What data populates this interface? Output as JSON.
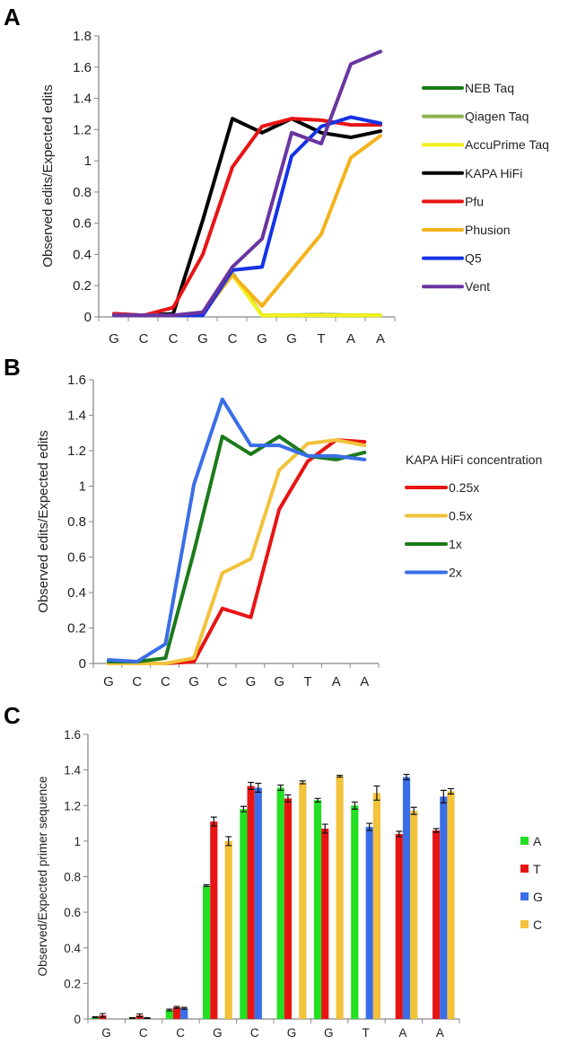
{
  "chart_data": [
    {
      "panel": "A",
      "type": "line",
      "categories": [
        "G",
        "C",
        "C",
        "G",
        "C",
        "G",
        "G",
        "T",
        "A",
        "A"
      ],
      "ylabel": "Observed edits/Expected edits",
      "ylim": [
        0,
        1.8
      ],
      "yticks": [
        "0",
        "0.2",
        "0.4",
        "0.6",
        "0.8",
        "1",
        "1.2",
        "1.4",
        "1.6",
        "1.8"
      ],
      "legend_position": "right",
      "series": [
        {
          "name": "NEB Taq",
          "color": "#1a7a1a",
          "values": [
            0.01,
            0.01,
            0.01,
            0.02,
            0.28,
            0.01,
            0.01,
            0.015,
            0.01,
            0.01
          ]
        },
        {
          "name": "Qiagen Taq",
          "color": "#8fb24f",
          "values": [
            0.01,
            0.01,
            0.01,
            0.02,
            0.28,
            0.01,
            0.01,
            0.015,
            0.01,
            0.01
          ]
        },
        {
          "name": "AccuPrime Taq",
          "color": "#f2f21a",
          "values": [
            0.01,
            0.01,
            0.01,
            0.02,
            0.27,
            0.01,
            0.01,
            0.01,
            0.01,
            0.01
          ]
        },
        {
          "name": "KAPA HiFi",
          "color": "#000000",
          "values": [
            0.02,
            0.01,
            0.02,
            0.62,
            1.27,
            1.18,
            1.27,
            1.18,
            1.15,
            1.19
          ]
        },
        {
          "name": "Pfu",
          "color": "#e81414",
          "values": [
            0.02,
            0.01,
            0.06,
            0.4,
            0.96,
            1.22,
            1.27,
            1.26,
            1.23,
            1.23
          ]
        },
        {
          "name": "Phusion",
          "color": "#f5b21c",
          "values": [
            0.01,
            0.01,
            0.01,
            0.02,
            0.27,
            0.07,
            0.3,
            0.53,
            1.02,
            1.16
          ]
        },
        {
          "name": "Q5",
          "color": "#1432e6",
          "values": [
            0.01,
            0.01,
            0.01,
            0.01,
            0.3,
            0.32,
            1.03,
            1.22,
            1.28,
            1.24
          ]
        },
        {
          "name": "Vent",
          "color": "#6a35a0",
          "values": [
            0.01,
            0.01,
            0.01,
            0.03,
            0.32,
            0.5,
            1.18,
            1.11,
            1.62,
            1.7
          ]
        }
      ]
    },
    {
      "panel": "B",
      "type": "line",
      "categories": [
        "G",
        "C",
        "C",
        "G",
        "C",
        "G",
        "G",
        "T",
        "A",
        "A"
      ],
      "ylabel": "Observed edits/Expected edits",
      "ylim": [
        0,
        1.6
      ],
      "yticks": [
        "0",
        "0.2",
        "0.4",
        "0.6",
        "0.8",
        "1",
        "1.2",
        "1.4",
        "1.6"
      ],
      "legend_title": "KAPA HiFi concentration",
      "legend_position": "right",
      "series": [
        {
          "name": "0.25x",
          "color": "#e81414",
          "values": [
            0.0,
            0.0,
            0.0,
            0.01,
            0.31,
            0.26,
            0.87,
            1.14,
            1.26,
            1.25
          ]
        },
        {
          "name": "0.5x",
          "color": "#f2c23a",
          "values": [
            0.0,
            0.0,
            0.0,
            0.03,
            0.51,
            0.59,
            1.09,
            1.24,
            1.26,
            1.23
          ]
        },
        {
          "name": "1x",
          "color": "#1a7a1a",
          "values": [
            0.01,
            0.01,
            0.03,
            0.63,
            1.28,
            1.18,
            1.28,
            1.17,
            1.15,
            1.19
          ]
        },
        {
          "name": "2x",
          "color": "#3a6ee8",
          "values": [
            0.02,
            0.01,
            0.11,
            1.01,
            1.49,
            1.23,
            1.23,
            1.17,
            1.17,
            1.15
          ]
        }
      ]
    },
    {
      "panel": "C",
      "type": "bar",
      "categories": [
        "G",
        "C",
        "C",
        "G",
        "C",
        "G",
        "G",
        "T",
        "A",
        "A"
      ],
      "ylabel": "Observed/Expected primer sequence",
      "ylim": [
        0,
        1.6
      ],
      "yticks": [
        "0",
        "0.2",
        "0.4",
        "0.6",
        "0.8",
        "1",
        "1.2",
        "1.4",
        "1.6"
      ],
      "legend_position": "right",
      "series": [
        {
          "name": "A",
          "color": "#22e022",
          "values": [
            0.01,
            0.005,
            0.05,
            0.75,
            1.18,
            1.3,
            1.23,
            1.2,
            null,
            null
          ],
          "errors": [
            0.003,
            0.002,
            0.005,
            0.005,
            0.015,
            0.015,
            0.01,
            0.02,
            null,
            null
          ]
        },
        {
          "name": "T",
          "color": "#e81414",
          "values": [
            0.02,
            0.02,
            0.065,
            1.11,
            1.31,
            1.24,
            1.07,
            null,
            1.04,
            1.06
          ],
          "errors": [
            0.01,
            0.008,
            0.005,
            0.025,
            0.02,
            0.02,
            0.025,
            null,
            0.015,
            0.01
          ]
        },
        {
          "name": "G",
          "color": "#3a6ee8",
          "values": [
            null,
            0.005,
            0.06,
            null,
            1.3,
            null,
            null,
            1.08,
            1.36,
            1.25
          ],
          "errors": [
            null,
            0.002,
            0.005,
            null,
            0.025,
            null,
            null,
            0.02,
            0.015,
            0.035
          ]
        },
        {
          "name": "C",
          "color": "#f2c23a",
          "values": [
            null,
            null,
            null,
            1.0,
            null,
            1.33,
            1.365,
            1.27,
            1.17,
            1.28
          ],
          "errors": [
            null,
            null,
            null,
            0.025,
            null,
            0.008,
            0.005,
            0.04,
            0.02,
            0.015
          ]
        }
      ]
    }
  ]
}
